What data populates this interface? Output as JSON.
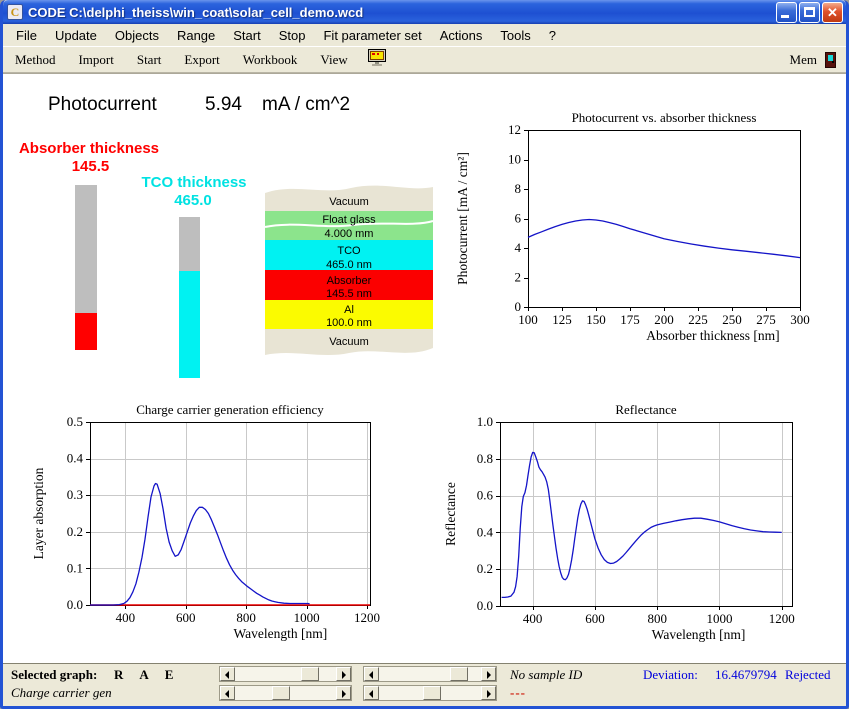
{
  "window": {
    "title": "CODE C:\\delphi_theiss\\win_coat\\solar_cell_demo.wcd",
    "icon_letter": "C"
  },
  "menu": {
    "items": [
      "File",
      "Update",
      "Objects",
      "Range",
      "Start",
      "Stop",
      "Fit parameter set",
      "Actions",
      "Tools",
      "?"
    ]
  },
  "toolbar": {
    "items": [
      "Method",
      "Import",
      "Start",
      "Export",
      "Workbook",
      "View"
    ],
    "mem_label": "Mem"
  },
  "main": {
    "photocurrent": {
      "label": "Photocurrent",
      "value": "5.94",
      "unit": "mA / cm^2"
    },
    "absorber": {
      "label": "Absorber thickness",
      "value": "145.5",
      "color": "#ff0000"
    },
    "tco": {
      "label": "TCO thickness",
      "value": "465.0",
      "color": "#00e2e2"
    },
    "layer_stack": {
      "layers": [
        {
          "name": "Vacuum",
          "thickness": "",
          "color": "none"
        },
        {
          "name": "Float glass",
          "thickness": "4.000 mm",
          "color": "#8ce48c"
        },
        {
          "name": "TCO",
          "thickness": "465.0 nm",
          "color": "#00f2f2"
        },
        {
          "name": "Absorber",
          "thickness": "145.5 nm",
          "color": "#fb0000"
        },
        {
          "name": "Al",
          "thickness": "100.0 nm",
          "color": "#fbfb00"
        },
        {
          "name": "Vacuum",
          "thickness": "",
          "color": "none"
        }
      ]
    }
  },
  "chart_data": [
    {
      "type": "line",
      "title": "Photocurrent vs. absorber thickness",
      "xlabel": "Absorber thickness [nm]",
      "ylabel": "Photocurrent [mA / cm²]",
      "xlim": [
        100,
        300
      ],
      "ylim": [
        0,
        12
      ],
      "grid": false,
      "xticks": [
        100,
        125,
        150,
        175,
        200,
        225,
        250,
        275,
        300
      ],
      "xtick_labels": [
        "100",
        "125",
        "150",
        "175",
        "200",
        "225",
        "250",
        "275",
        "300"
      ],
      "yticks": [
        0,
        2,
        4,
        6,
        8,
        10,
        12
      ],
      "ytick_labels": [
        "0",
        "2",
        "4",
        "6",
        "8",
        "10",
        "12"
      ],
      "series": [
        {
          "name": "photocurrent",
          "color": "#1414c8",
          "x": [
            100,
            105,
            110,
            115,
            120,
            125,
            130,
            135,
            140,
            145,
            150,
            155,
            160,
            165,
            170,
            175,
            180,
            185,
            190,
            195,
            200,
            210,
            220,
            230,
            240,
            250,
            260,
            270,
            280,
            290,
            300
          ],
          "y": [
            4.72,
            4.92,
            5.1,
            5.28,
            5.45,
            5.6,
            5.73,
            5.83,
            5.9,
            5.93,
            5.9,
            5.83,
            5.72,
            5.6,
            5.46,
            5.31,
            5.17,
            5.03,
            4.9,
            4.76,
            4.63,
            4.44,
            4.27,
            4.12,
            3.99,
            3.88,
            3.78,
            3.68,
            3.58,
            3.47,
            3.35
          ]
        }
      ]
    },
    {
      "type": "line",
      "title": "Charge carrier generation efficiency",
      "xlabel": "Wavelength [nm]",
      "ylabel": "Layer absorption",
      "xlim": [
        283,
        1210
      ],
      "ylim": [
        0,
        0.5
      ],
      "grid": true,
      "xticks": [
        400,
        600,
        800,
        1000,
        1200
      ],
      "xtick_labels": [
        "400",
        "600",
        "800",
        "1000",
        "1200"
      ],
      "yticks": [
        0,
        0.1,
        0.2,
        0.3,
        0.4,
        0.5
      ],
      "ytick_labels": [
        "0.0",
        "0.1",
        "0.2",
        "0.3",
        "0.4",
        "0.5"
      ],
      "baseline": {
        "y": 0,
        "color": "#ee0000"
      },
      "series": [
        {
          "name": "layer absorption",
          "color": "#1414c8",
          "x": [
            283,
            300,
            320,
            340,
            360,
            380,
            395,
            405,
            415,
            425,
            435,
            445,
            455,
            465,
            475,
            485,
            495,
            500,
            505,
            515,
            525,
            535,
            545,
            555,
            565,
            575,
            585,
            595,
            605,
            615,
            625,
            635,
            645,
            655,
            665,
            675,
            685,
            695,
            705,
            715,
            725,
            735,
            745,
            755,
            765,
            775,
            785,
            795,
            805,
            815,
            825,
            835,
            845,
            855,
            865,
            875,
            885,
            895,
            905,
            925,
            945,
            965,
            985,
            1005,
            1010
          ],
          "y": [
            0,
            0,
            0,
            0,
            0,
            0.001,
            0.004,
            0.01,
            0.02,
            0.036,
            0.058,
            0.09,
            0.13,
            0.18,
            0.24,
            0.295,
            0.325,
            0.332,
            0.33,
            0.305,
            0.262,
            0.21,
            0.172,
            0.148,
            0.133,
            0.137,
            0.152,
            0.175,
            0.2,
            0.224,
            0.243,
            0.258,
            0.267,
            0.267,
            0.261,
            0.25,
            0.233,
            0.213,
            0.192,
            0.17,
            0.148,
            0.128,
            0.11,
            0.095,
            0.083,
            0.073,
            0.064,
            0.057,
            0.05,
            0.044,
            0.038,
            0.032,
            0.027,
            0.022,
            0.018,
            0.014,
            0.011,
            0.009,
            0.007,
            0.005,
            0.004,
            0.004,
            0.004,
            0.004,
            0.003
          ]
        }
      ]
    },
    {
      "type": "line",
      "title": "Reflectance",
      "xlabel": "Wavelength [nm]",
      "ylabel": "Reflectance",
      "xlim": [
        295,
        1233
      ],
      "ylim": [
        0,
        1.0
      ],
      "grid": true,
      "xticks": [
        400,
        600,
        800,
        1000,
        1200
      ],
      "xtick_labels": [
        "400",
        "600",
        "800",
        "1000",
        "1200"
      ],
      "yticks": [
        0,
        0.2,
        0.4,
        0.6,
        0.8,
        1.0
      ],
      "ytick_labels": [
        "0.0",
        "0.2",
        "0.4",
        "0.6",
        "0.8",
        "1.0"
      ],
      "series": [
        {
          "name": "reflectance",
          "color": "#1414c8",
          "x": [
            300,
            310,
            320,
            330,
            340,
            345,
            350,
            355,
            360,
            365,
            370,
            375,
            380,
            385,
            390,
            395,
            400,
            405,
            410,
            415,
            420,
            425,
            430,
            435,
            440,
            445,
            450,
            455,
            460,
            465,
            470,
            475,
            480,
            485,
            490,
            495,
            500,
            505,
            510,
            515,
            520,
            525,
            530,
            535,
            540,
            545,
            550,
            555,
            560,
            565,
            570,
            575,
            580,
            590,
            600,
            610,
            620,
            630,
            640,
            650,
            660,
            670,
            680,
            690,
            700,
            710,
            720,
            730,
            740,
            750,
            760,
            770,
            780,
            790,
            800,
            820,
            840,
            860,
            880,
            900,
            920,
            940,
            960,
            980,
            1000,
            1020,
            1040,
            1060,
            1080,
            1100,
            1120,
            1140,
            1160,
            1180,
            1200
          ],
          "y": [
            0.047,
            0.047,
            0.049,
            0.054,
            0.075,
            0.105,
            0.16,
            0.27,
            0.42,
            0.54,
            0.595,
            0.615,
            0.655,
            0.71,
            0.765,
            0.81,
            0.835,
            0.833,
            0.81,
            0.785,
            0.755,
            0.74,
            0.73,
            0.715,
            0.7,
            0.675,
            0.635,
            0.575,
            0.505,
            0.44,
            0.375,
            0.315,
            0.26,
            0.215,
            0.18,
            0.155,
            0.145,
            0.143,
            0.152,
            0.172,
            0.205,
            0.25,
            0.305,
            0.365,
            0.425,
            0.48,
            0.525,
            0.555,
            0.572,
            0.568,
            0.55,
            0.525,
            0.495,
            0.43,
            0.365,
            0.315,
            0.278,
            0.252,
            0.237,
            0.231,
            0.233,
            0.242,
            0.256,
            0.272,
            0.291,
            0.311,
            0.331,
            0.351,
            0.37,
            0.388,
            0.403,
            0.416,
            0.427,
            0.435,
            0.441,
            0.449,
            0.456,
            0.463,
            0.469,
            0.474,
            0.477,
            0.477,
            0.472,
            0.465,
            0.457,
            0.447,
            0.437,
            0.428,
            0.42,
            0.413,
            0.408,
            0.404,
            0.402,
            0.401,
            0.4
          ]
        }
      ]
    }
  ],
  "statusbar": {
    "selected_graph_label": "Selected graph:",
    "graph_codes": [
      "R",
      "A",
      "E"
    ],
    "current_graph": "Charge carrier gen",
    "sample_id": "No sample ID",
    "deviation_label": "Deviation:",
    "deviation_value": "16.4679794",
    "status": "Rejected",
    "dashes": "---",
    "scrollbars": [
      0.8,
      0.85,
      0.45,
      0.52
    ]
  }
}
